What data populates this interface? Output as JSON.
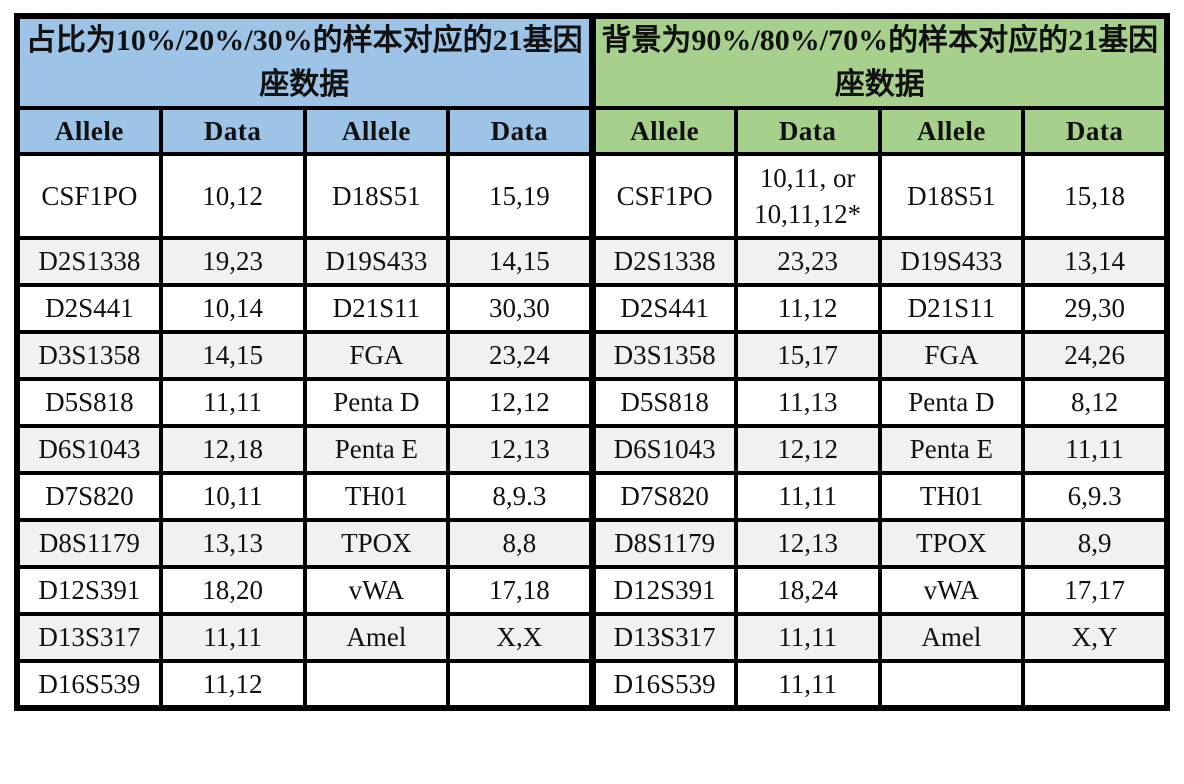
{
  "colors": {
    "left_header_bg": "#9DC3E6",
    "right_header_bg": "#A8D08D",
    "alt_row_bg": "#F1F1F1",
    "border": "#000000"
  },
  "left": {
    "title": "占比为10%/20%/30%的样本对应的21基因座数据",
    "headers": [
      "Allele",
      "Data",
      "Allele",
      "Data"
    ],
    "rows": [
      [
        "CSF1PO",
        "10,12",
        "D18S51",
        "15,19"
      ],
      [
        "D2S1338",
        "19,23",
        "D19S433",
        "14,15"
      ],
      [
        "D2S441",
        "10,14",
        "D21S11",
        "30,30"
      ],
      [
        "D3S1358",
        "14,15",
        "FGA",
        "23,24"
      ],
      [
        "D5S818",
        "11,11",
        "Penta D",
        "12,12"
      ],
      [
        "D6S1043",
        "12,18",
        "Penta E",
        "12,13"
      ],
      [
        "D7S820",
        "10,11",
        "TH01",
        "8,9.3"
      ],
      [
        "D8S1179",
        "13,13",
        "TPOX",
        "8,8"
      ],
      [
        "D12S391",
        "18,20",
        "vWA",
        "17,18"
      ],
      [
        "D13S317",
        "11,11",
        "Amel",
        "X,X"
      ],
      [
        "D16S539",
        "11,12",
        "",
        ""
      ]
    ]
  },
  "right": {
    "title": "背景为90%/80%/70%的样本对应的21基因座数据",
    "headers": [
      "Allele",
      "Data",
      "Allele",
      "Data"
    ],
    "rows": [
      [
        "CSF1PO",
        "10,11, or\n10,11,12*",
        "D18S51",
        "15,18"
      ],
      [
        "D2S1338",
        "23,23",
        "D19S433",
        "13,14"
      ],
      [
        "D2S441",
        "11,12",
        "D21S11",
        "29,30"
      ],
      [
        "D3S1358",
        "15,17",
        "FGA",
        "24,26"
      ],
      [
        "D5S818",
        "11,13",
        "Penta D",
        "8,12"
      ],
      [
        "D6S1043",
        "12,12",
        "Penta E",
        "11,11"
      ],
      [
        "D7S820",
        "11,11",
        "TH01",
        "6,9.3"
      ],
      [
        "D8S1179",
        "12,13",
        "TPOX",
        "8,9"
      ],
      [
        "D12S391",
        "18,24",
        "vWA",
        "17,17"
      ],
      [
        "D13S317",
        "11,11",
        "Amel",
        "X,Y"
      ],
      [
        "D16S539",
        "11,11",
        "",
        ""
      ]
    ]
  }
}
